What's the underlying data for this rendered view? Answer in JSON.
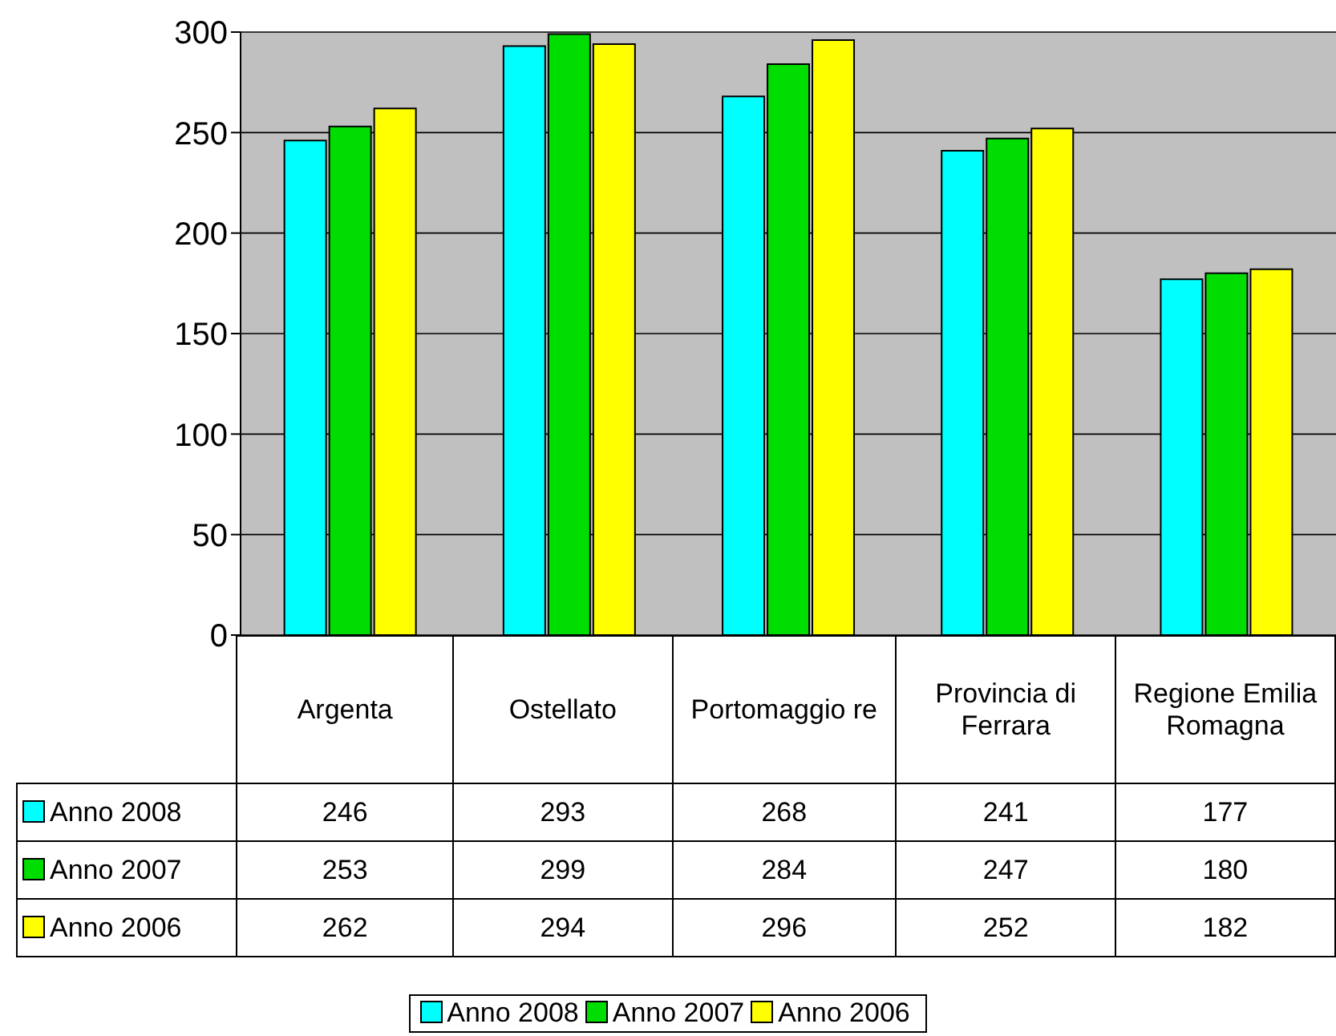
{
  "chart_data": {
    "type": "bar",
    "categories": [
      "Argenta",
      "Ostellato",
      "Portomaggio re",
      "Provincia di Ferrara",
      "Regione Emilia Romagna"
    ],
    "series": [
      {
        "name": "Anno 2008",
        "color": "#00ffff",
        "values": [
          246,
          293,
          268,
          241,
          177
        ]
      },
      {
        "name": "Anno 2007",
        "color": "#00dd00",
        "values": [
          253,
          299,
          284,
          247,
          180
        ]
      },
      {
        "name": "Anno 2006",
        "color": "#ffff00",
        "values": [
          262,
          294,
          296,
          252,
          182
        ]
      }
    ],
    "ylim": [
      0,
      300
    ],
    "yticks": [
      0,
      50,
      100,
      150,
      200,
      250,
      300
    ],
    "grid": "y",
    "legend": "bottom",
    "data_labels": true
  }
}
